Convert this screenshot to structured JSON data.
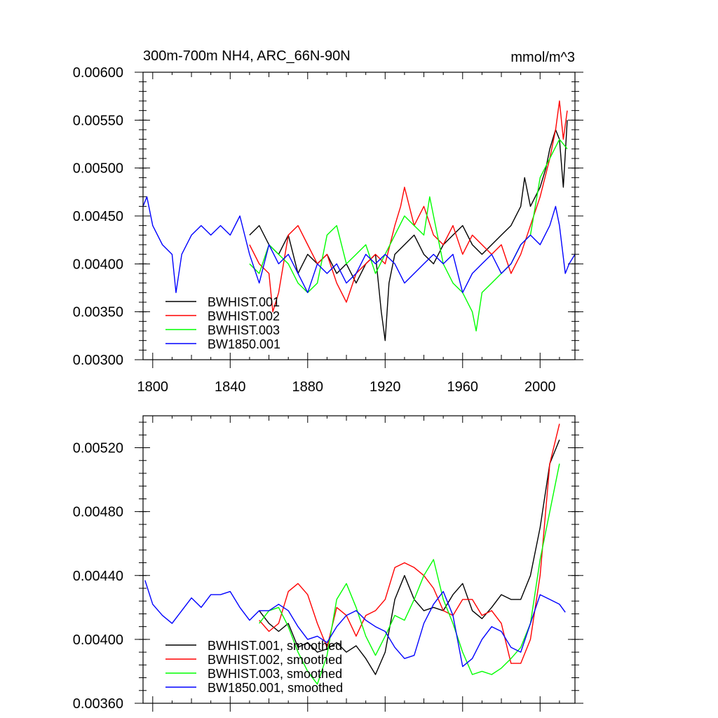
{
  "chart_data": [
    {
      "type": "line",
      "title": "300m-700m NH4, ARC_66N-90N",
      "units": "mmol/m^3",
      "xlim": [
        1795,
        2018
      ],
      "ylim": [
        0.003,
        0.006
      ],
      "xticks": [
        1800,
        1840,
        1880,
        1920,
        1960,
        2000
      ],
      "xtick_labels": [
        "1800",
        "1840",
        "1880",
        "1920",
        "1960",
        "2000"
      ],
      "yticks": [
        0.003,
        0.0035,
        0.004,
        0.0045,
        0.005,
        0.0055,
        0.006
      ],
      "ytick_labels": [
        "0.00300",
        "0.00350",
        "0.00400",
        "0.00450",
        "0.00500",
        "0.00550",
        "0.00600"
      ],
      "legend_position": "bottom-left",
      "series": [
        {
          "name": "BWHIST.001",
          "color": "#000000",
          "x": [
            1850,
            1855,
            1860,
            1865,
            1870,
            1875,
            1880,
            1885,
            1890,
            1895,
            1900,
            1905,
            1910,
            1915,
            1918,
            1920,
            1922,
            1925,
            1930,
            1935,
            1940,
            1945,
            1950,
            1955,
            1960,
            1965,
            1970,
            1975,
            1980,
            1985,
            1990,
            1992,
            1995,
            2000,
            2003,
            2005,
            2008,
            2010,
            2012,
            2014
          ],
          "values": [
            0.0043,
            0.0044,
            0.0042,
            0.0041,
            0.0043,
            0.0039,
            0.0041,
            0.004,
            0.0041,
            0.0039,
            0.004,
            0.0038,
            0.004,
            0.0041,
            0.0035,
            0.0032,
            0.0038,
            0.0041,
            0.0042,
            0.0043,
            0.0041,
            0.004,
            0.0042,
            0.0043,
            0.0044,
            0.0042,
            0.0041,
            0.0042,
            0.0043,
            0.0044,
            0.0046,
            0.0049,
            0.0046,
            0.0048,
            0.005,
            0.0052,
            0.0054,
            0.0053,
            0.0048,
            0.0055
          ]
        },
        {
          "name": "BWHIST.002",
          "color": "#ff0000",
          "x": [
            1850,
            1855,
            1860,
            1862,
            1865,
            1870,
            1875,
            1880,
            1885,
            1890,
            1895,
            1900,
            1905,
            1910,
            1915,
            1920,
            1925,
            1928,
            1930,
            1935,
            1940,
            1945,
            1950,
            1955,
            1960,
            1965,
            1970,
            1975,
            1980,
            1985,
            1990,
            1995,
            2000,
            2005,
            2008,
            2010,
            2012,
            2014
          ],
          "values": [
            0.0042,
            0.004,
            0.0039,
            0.0035,
            0.0037,
            0.0043,
            0.0044,
            0.0042,
            0.004,
            0.0041,
            0.0038,
            0.0036,
            0.0039,
            0.004,
            0.0041,
            0.004,
            0.0044,
            0.0046,
            0.0048,
            0.0044,
            0.0046,
            0.0043,
            0.0042,
            0.0044,
            0.0041,
            0.0043,
            0.0042,
            0.0041,
            0.0042,
            0.0039,
            0.0041,
            0.0044,
            0.0047,
            0.0051,
            0.0054,
            0.0057,
            0.0053,
            0.0056
          ]
        },
        {
          "name": "BWHIST.003",
          "color": "#00ff00",
          "x": [
            1850,
            1855,
            1860,
            1865,
            1870,
            1875,
            1880,
            1885,
            1890,
            1895,
            1900,
            1905,
            1910,
            1915,
            1920,
            1925,
            1930,
            1935,
            1940,
            1943,
            1945,
            1950,
            1955,
            1960,
            1965,
            1967,
            1970,
            1975,
            1980,
            1985,
            1990,
            1995,
            2000,
            2005,
            2010,
            2014
          ],
          "values": [
            0.004,
            0.0039,
            0.0042,
            0.0041,
            0.004,
            0.0038,
            0.0037,
            0.0038,
            0.0043,
            0.0044,
            0.004,
            0.0041,
            0.0042,
            0.0039,
            0.0041,
            0.0043,
            0.0045,
            0.0044,
            0.0043,
            0.0047,
            0.0045,
            0.004,
            0.0038,
            0.0037,
            0.0035,
            0.0033,
            0.0037,
            0.0038,
            0.0039,
            0.004,
            0.0042,
            0.0043,
            0.0049,
            0.0051,
            0.0053,
            0.0052
          ]
        },
        {
          "name": "BW1850.001",
          "color": "#0000ff",
          "x": [
            1795,
            1797,
            1800,
            1805,
            1810,
            1812,
            1815,
            1820,
            1825,
            1830,
            1835,
            1840,
            1845,
            1850,
            1855,
            1860,
            1865,
            1870,
            1875,
            1880,
            1885,
            1890,
            1895,
            1900,
            1905,
            1910,
            1915,
            1920,
            1925,
            1930,
            1935,
            1940,
            1945,
            1950,
            1955,
            1960,
            1965,
            1970,
            1975,
            1980,
            1985,
            1990,
            1995,
            2000,
            2005,
            2008,
            2010,
            2013,
            2015,
            2018
          ],
          "values": [
            0.0046,
            0.0047,
            0.0044,
            0.0042,
            0.0041,
            0.0037,
            0.0041,
            0.0043,
            0.0044,
            0.0043,
            0.0044,
            0.0043,
            0.0045,
            0.0041,
            0.0038,
            0.0042,
            0.004,
            0.0041,
            0.0039,
            0.0037,
            0.004,
            0.0039,
            0.004,
            0.0038,
            0.0039,
            0.0041,
            0.004,
            0.0041,
            0.004,
            0.0038,
            0.0039,
            0.004,
            0.0041,
            0.004,
            0.0041,
            0.0037,
            0.0039,
            0.004,
            0.0041,
            0.0039,
            0.004,
            0.0042,
            0.0043,
            0.0042,
            0.0044,
            0.0046,
            0.0044,
            0.0039,
            0.004,
            0.0041
          ]
        }
      ]
    },
    {
      "type": "line",
      "title": "",
      "xlim": [
        1795,
        2018
      ],
      "ylim": [
        0.0036,
        0.0054
      ],
      "xticks": [
        1800,
        1840,
        1880,
        1920,
        1960,
        2000
      ],
      "yticks": [
        0.0036,
        0.004,
        0.0044,
        0.0048,
        0.0052
      ],
      "ytick_labels": [
        "0.00360",
        "0.00400",
        "0.00440",
        "0.00480",
        "0.00520"
      ],
      "legend_position": "bottom-left",
      "series": [
        {
          "name": "BWHIST.001, smoothed",
          "color": "#000000",
          "x": [
            1855,
            1860,
            1865,
            1870,
            1875,
            1880,
            1885,
            1890,
            1895,
            1900,
            1905,
            1910,
            1915,
            1920,
            1925,
            1930,
            1935,
            1940,
            1945,
            1950,
            1955,
            1960,
            1965,
            1970,
            1975,
            1980,
            1985,
            1990,
            1995,
            2000,
            2005,
            2010
          ],
          "values": [
            0.00418,
            0.0041,
            0.00405,
            0.0041,
            0.00395,
            0.00398,
            0.00392,
            0.00394,
            0.00398,
            0.00392,
            0.00396,
            0.00388,
            0.00378,
            0.00392,
            0.00425,
            0.0044,
            0.00425,
            0.00418,
            0.0042,
            0.00418,
            0.00428,
            0.00435,
            0.00418,
            0.00413,
            0.0042,
            0.00428,
            0.00425,
            0.00425,
            0.0044,
            0.0047,
            0.0051,
            0.00525
          ]
        },
        {
          "name": "BWHIST.002, smoothed",
          "color": "#ff0000",
          "x": [
            1855,
            1860,
            1865,
            1870,
            1875,
            1880,
            1885,
            1890,
            1895,
            1900,
            1905,
            1910,
            1915,
            1920,
            1925,
            1930,
            1935,
            1940,
            1945,
            1950,
            1955,
            1960,
            1965,
            1970,
            1975,
            1980,
            1985,
            1990,
            1995,
            2000,
            2005,
            2010
          ],
          "values": [
            0.00412,
            0.00405,
            0.0041,
            0.0043,
            0.00435,
            0.00428,
            0.0041,
            0.00395,
            0.0042,
            0.00415,
            0.00402,
            0.00415,
            0.00418,
            0.00425,
            0.00445,
            0.00448,
            0.00445,
            0.0044,
            0.00432,
            0.00418,
            0.00415,
            0.00425,
            0.00425,
            0.00415,
            0.00418,
            0.0041,
            0.00385,
            0.00385,
            0.004,
            0.0044,
            0.0051,
            0.00535
          ]
        },
        {
          "name": "BWHIST.003, smoothed",
          "color": "#00ff00",
          "x": [
            1855,
            1860,
            1865,
            1870,
            1875,
            1880,
            1885,
            1890,
            1895,
            1900,
            1905,
            1910,
            1915,
            1920,
            1925,
            1930,
            1935,
            1940,
            1945,
            1950,
            1955,
            1960,
            1965,
            1970,
            1975,
            1980,
            1985,
            1990,
            1995,
            2000,
            2005,
            2010
          ],
          "values": [
            0.0041,
            0.00418,
            0.0042,
            0.00408,
            0.00392,
            0.0038,
            0.00372,
            0.0039,
            0.00425,
            0.00435,
            0.0042,
            0.00402,
            0.0039,
            0.00402,
            0.00415,
            0.00412,
            0.00425,
            0.0044,
            0.0045,
            0.00425,
            0.0041,
            0.00392,
            0.00378,
            0.0038,
            0.00378,
            0.00382,
            0.00388,
            0.00395,
            0.0041,
            0.0045,
            0.0048,
            0.0051
          ]
        },
        {
          "name": "BW1850.001, smoothed",
          "color": "#0000ff",
          "x": [
            1796,
            1800,
            1805,
            1810,
            1815,
            1820,
            1825,
            1830,
            1835,
            1840,
            1845,
            1850,
            1855,
            1860,
            1865,
            1870,
            1875,
            1880,
            1885,
            1890,
            1895,
            1900,
            1905,
            1910,
            1915,
            1920,
            1925,
            1930,
            1935,
            1940,
            1945,
            1950,
            1955,
            1960,
            1965,
            1970,
            1975,
            1980,
            1985,
            1990,
            1995,
            2000,
            2005,
            2010,
            2013
          ],
          "values": [
            0.00437,
            0.00422,
            0.00415,
            0.0041,
            0.00418,
            0.00426,
            0.0042,
            0.00428,
            0.00428,
            0.0043,
            0.0042,
            0.00412,
            0.00418,
            0.00418,
            0.00422,
            0.00418,
            0.00408,
            0.004,
            0.00402,
            0.00398,
            0.00408,
            0.00415,
            0.00418,
            0.00412,
            0.00408,
            0.00405,
            0.00395,
            0.00388,
            0.0039,
            0.0041,
            0.00422,
            0.0043,
            0.00415,
            0.00383,
            0.00388,
            0.004,
            0.00408,
            0.00405,
            0.00395,
            0.00392,
            0.0041,
            0.00428,
            0.00425,
            0.00422,
            0.00417
          ]
        }
      ]
    }
  ]
}
